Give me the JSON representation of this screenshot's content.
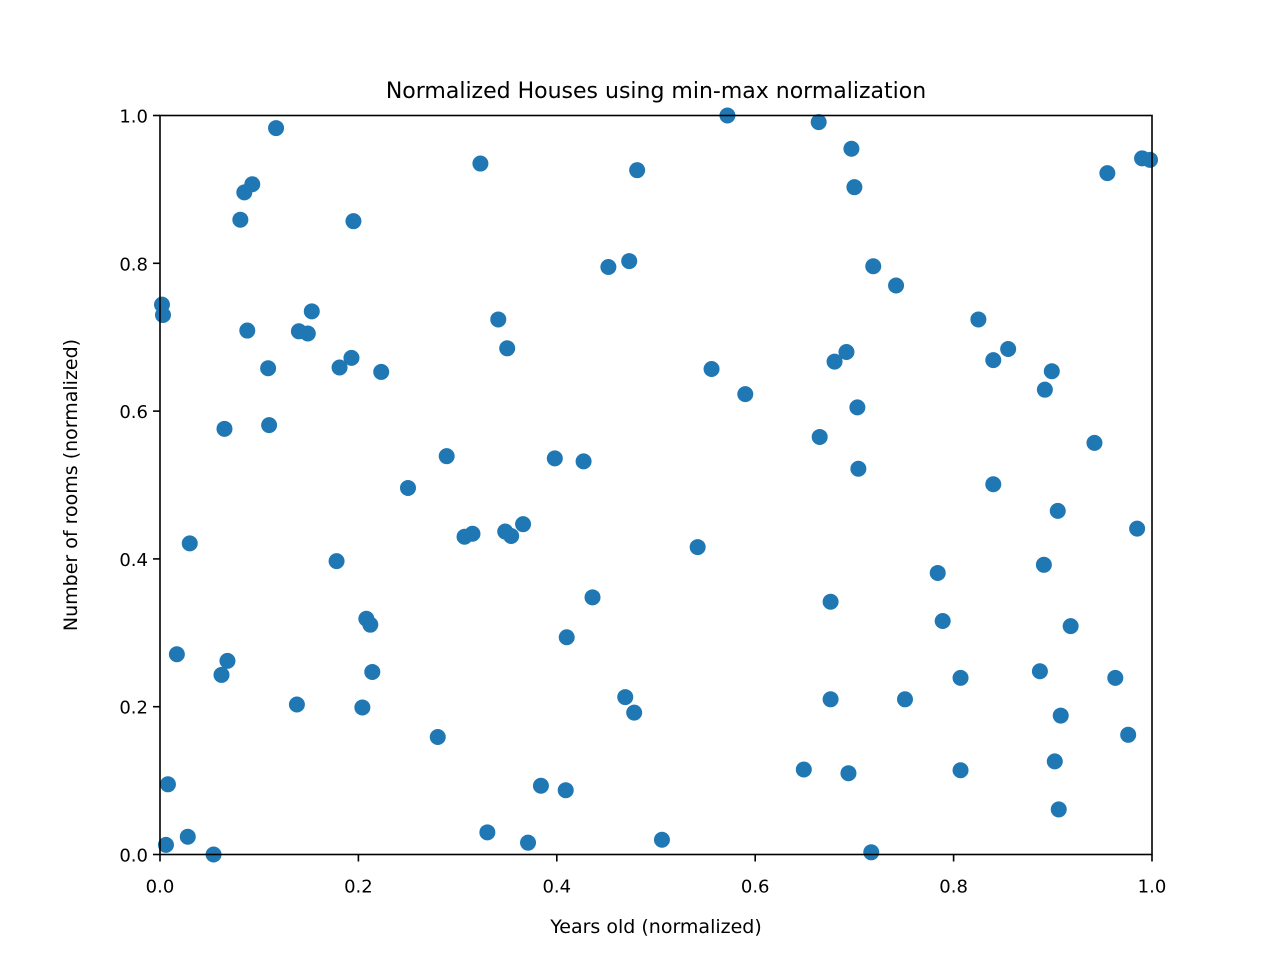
{
  "chart_data": {
    "type": "scatter",
    "title": "Normalized Houses using min-max normalization",
    "xlabel": "Years old (normalized)",
    "ylabel": "Number of rooms (normalized)",
    "xlim": [
      0.0,
      1.0
    ],
    "ylim": [
      0.0,
      1.0
    ],
    "grid": false,
    "color": "#1f77b4",
    "x_ticks": [
      "0.0",
      "0.2",
      "0.4",
      "0.6",
      "0.8",
      "1.0"
    ],
    "y_ticks": [
      "0.0",
      "0.2",
      "0.4",
      "0.6",
      "0.8",
      "1.0"
    ],
    "points": [
      [
        0.117,
        0.983
      ],
      [
        0.323,
        0.935
      ],
      [
        0.572,
        1.0
      ],
      [
        0.664,
        0.991
      ],
      [
        0.697,
        0.955
      ],
      [
        0.7,
        0.903
      ],
      [
        0.481,
        0.926
      ],
      [
        0.093,
        0.907
      ],
      [
        0.085,
        0.896
      ],
      [
        0.081,
        0.859
      ],
      [
        0.195,
        0.857
      ],
      [
        0.955,
        0.922
      ],
      [
        0.99,
        0.942
      ],
      [
        0.998,
        0.94
      ],
      [
        0.452,
        0.795
      ],
      [
        0.473,
        0.803
      ],
      [
        0.719,
        0.796
      ],
      [
        0.742,
        0.77
      ],
      [
        0.002,
        0.744
      ],
      [
        0.003,
        0.73
      ],
      [
        0.153,
        0.735
      ],
      [
        0.088,
        0.709
      ],
      [
        0.14,
        0.708
      ],
      [
        0.149,
        0.705
      ],
      [
        0.341,
        0.724
      ],
      [
        0.35,
        0.685
      ],
      [
        0.825,
        0.724
      ],
      [
        0.855,
        0.684
      ],
      [
        0.84,
        0.669
      ],
      [
        0.692,
        0.68
      ],
      [
        0.68,
        0.667
      ],
      [
        0.193,
        0.672
      ],
      [
        0.181,
        0.659
      ],
      [
        0.223,
        0.653
      ],
      [
        0.109,
        0.658
      ],
      [
        0.556,
        0.657
      ],
      [
        0.899,
        0.654
      ],
      [
        0.892,
        0.629
      ],
      [
        0.59,
        0.623
      ],
      [
        0.703,
        0.605
      ],
      [
        0.065,
        0.576
      ],
      [
        0.11,
        0.581
      ],
      [
        0.665,
        0.565
      ],
      [
        0.942,
        0.557
      ],
      [
        0.289,
        0.539
      ],
      [
        0.398,
        0.536
      ],
      [
        0.427,
        0.532
      ],
      [
        0.704,
        0.522
      ],
      [
        0.84,
        0.501
      ],
      [
        0.25,
        0.496
      ],
      [
        0.905,
        0.465
      ],
      [
        0.366,
        0.447
      ],
      [
        0.985,
        0.441
      ],
      [
        0.315,
        0.434
      ],
      [
        0.307,
        0.43
      ],
      [
        0.348,
        0.437
      ],
      [
        0.354,
        0.431
      ],
      [
        0.03,
        0.421
      ],
      [
        0.542,
        0.416
      ],
      [
        0.178,
        0.397
      ],
      [
        0.891,
        0.392
      ],
      [
        0.784,
        0.381
      ],
      [
        0.436,
        0.348
      ],
      [
        0.676,
        0.342
      ],
      [
        0.208,
        0.319
      ],
      [
        0.212,
        0.311
      ],
      [
        0.789,
        0.316
      ],
      [
        0.918,
        0.309
      ],
      [
        0.41,
        0.294
      ],
      [
        0.017,
        0.271
      ],
      [
        0.068,
        0.262
      ],
      [
        0.062,
        0.243
      ],
      [
        0.214,
        0.247
      ],
      [
        0.887,
        0.248
      ],
      [
        0.963,
        0.239
      ],
      [
        0.807,
        0.239
      ],
      [
        0.469,
        0.213
      ],
      [
        0.676,
        0.21
      ],
      [
        0.751,
        0.21
      ],
      [
        0.138,
        0.203
      ],
      [
        0.204,
        0.199
      ],
      [
        0.478,
        0.192
      ],
      [
        0.908,
        0.188
      ],
      [
        0.976,
        0.162
      ],
      [
        0.28,
        0.159
      ],
      [
        0.902,
        0.126
      ],
      [
        0.649,
        0.115
      ],
      [
        0.807,
        0.114
      ],
      [
        0.694,
        0.11
      ],
      [
        0.008,
        0.095
      ],
      [
        0.384,
        0.093
      ],
      [
        0.409,
        0.087
      ],
      [
        0.906,
        0.061
      ],
      [
        0.33,
        0.03
      ],
      [
        0.028,
        0.024
      ],
      [
        0.506,
        0.02
      ],
      [
        0.371,
        0.016
      ],
      [
        0.006,
        0.013
      ],
      [
        0.054,
        0.0
      ],
      [
        0.717,
        0.003
      ]
    ]
  }
}
